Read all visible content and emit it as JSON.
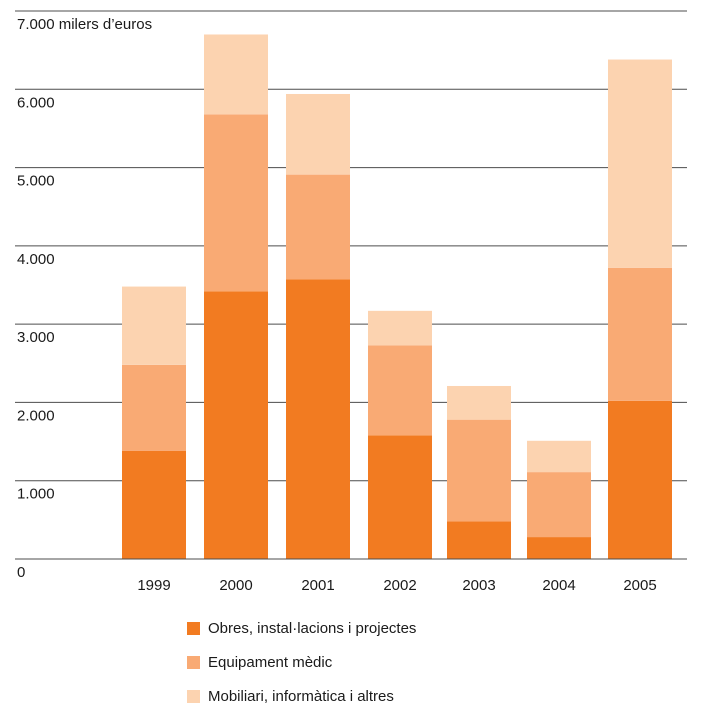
{
  "chart_data": {
    "type": "bar",
    "stacked": true,
    "ylabel": "milers d’euros",
    "ylim": [
      0,
      7000
    ],
    "yticks": [
      0,
      1000,
      2000,
      3000,
      4000,
      5000,
      6000,
      7000
    ],
    "ytick_labels": [
      "0",
      "1.000",
      "2.000",
      "3.000",
      "4.000",
      "5.000",
      "6.000",
      "7.000"
    ],
    "top_tick_label": "7.000 milers d’euros",
    "grid": true,
    "legend_position": "bottom",
    "categories": [
      "1999",
      "2000",
      "2001",
      "2002",
      "2003",
      "2004",
      "2005"
    ],
    "series": [
      {
        "name": "Obres, instal·lacions i projectes",
        "color": "#f27b21",
        "values": [
          1380,
          3420,
          3570,
          1580,
          480,
          280,
          2020
        ]
      },
      {
        "name": "Equipament mèdic",
        "color": "#f9aa74",
        "values": [
          1100,
          2260,
          1340,
          1150,
          1300,
          830,
          1700
        ]
      },
      {
        "name": "Mobiliari, informàtica i altres",
        "color": "#fcd3b0",
        "values": [
          1000,
          1020,
          1030,
          440,
          430,
          400,
          2660
        ]
      }
    ]
  }
}
